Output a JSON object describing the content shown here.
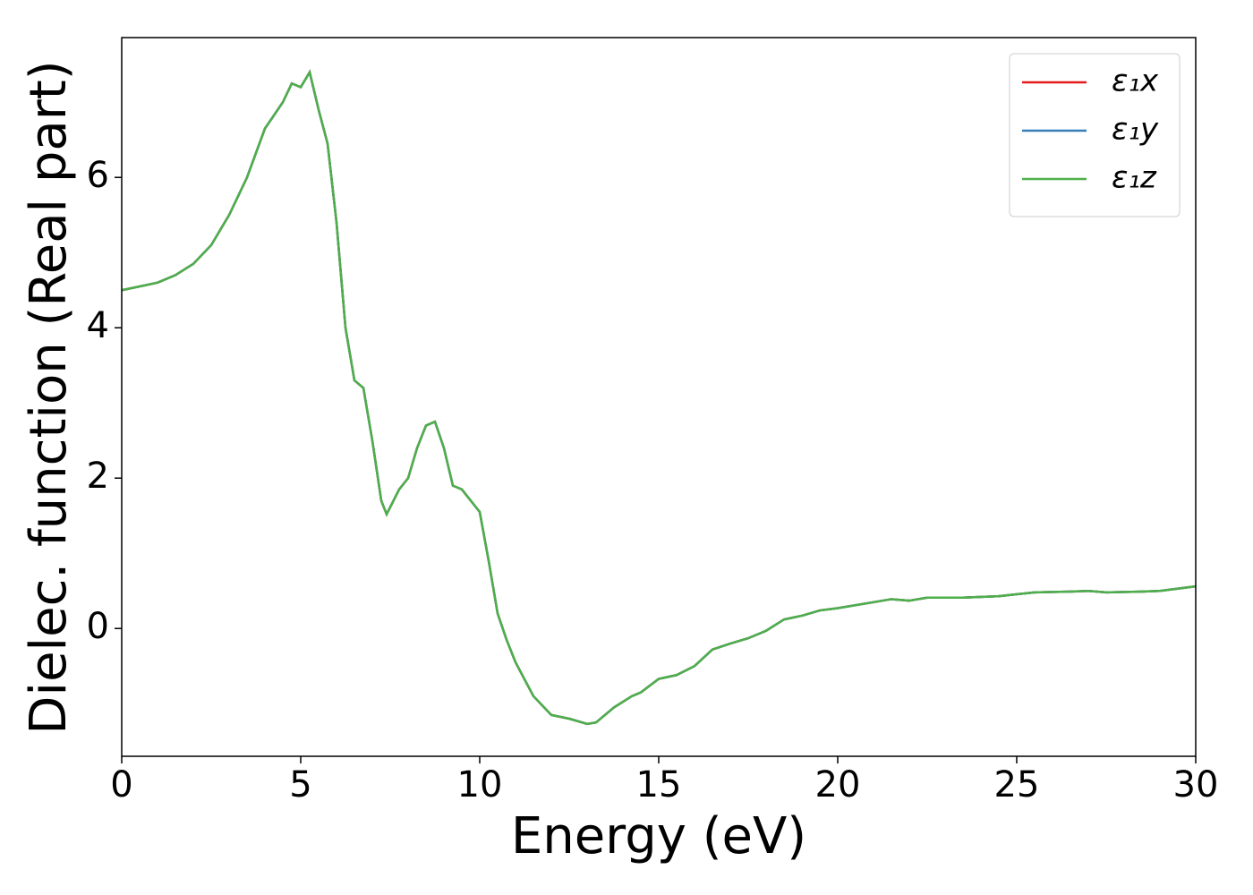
{
  "chart_data": {
    "type": "line",
    "xlabel": "Energy (eV)",
    "ylabel": "Dielec. function (Real part)",
    "x": [
      0,
      1,
      1.5,
      2,
      2.5,
      3,
      3.5,
      4,
      4.5,
      4.75,
      5,
      5.25,
      5.5,
      5.75,
      6,
      6.25,
      6.5,
      6.75,
      7,
      7.25,
      7.4,
      7.75,
      8,
      8.25,
      8.5,
      8.75,
      9,
      9.25,
      9.5,
      10,
      10.25,
      10.5,
      10.75,
      11,
      11.5,
      12,
      12.5,
      13,
      13.25,
      13.75,
      14.25,
      14.5,
      15,
      15.5,
      16,
      16.5,
      17,
      17.5,
      18,
      18.5,
      19,
      19.5,
      20,
      21,
      21.5,
      22,
      22.5,
      23.5,
      24.5,
      25.5,
      26.5,
      27,
      27.5,
      28.5,
      29,
      30
    ],
    "series": [
      {
        "name": "ε₁x",
        "color": "#e41a1c",
        "values": [
          4.5,
          4.6,
          4.7,
          4.85,
          5.1,
          5.5,
          6.0,
          6.65,
          7.0,
          7.25,
          7.2,
          7.4,
          6.9,
          6.45,
          5.4,
          4.0,
          3.3,
          3.2,
          2.5,
          1.7,
          1.52,
          1.85,
          2.0,
          2.4,
          2.7,
          2.75,
          2.4,
          1.9,
          1.85,
          1.55,
          0.9,
          0.2,
          -0.15,
          -0.45,
          -0.9,
          -1.15,
          -1.2,
          -1.27,
          -1.25,
          -1.05,
          -0.9,
          -0.85,
          -0.67,
          -0.62,
          -0.5,
          -0.28,
          -0.2,
          -0.13,
          -0.03,
          0.12,
          0.17,
          0.24,
          0.27,
          0.35,
          0.39,
          0.37,
          0.41,
          0.41,
          0.43,
          0.48,
          0.49,
          0.5,
          0.48,
          0.49,
          0.5,
          0.56
        ]
      },
      {
        "name": "ε₁y",
        "color": "#377eb8",
        "values": [
          4.5,
          4.6,
          4.7,
          4.85,
          5.1,
          5.5,
          6.0,
          6.65,
          7.0,
          7.25,
          7.2,
          7.4,
          6.9,
          6.45,
          5.4,
          4.0,
          3.3,
          3.2,
          2.5,
          1.7,
          1.52,
          1.85,
          2.0,
          2.4,
          2.7,
          2.75,
          2.4,
          1.9,
          1.85,
          1.55,
          0.9,
          0.2,
          -0.15,
          -0.45,
          -0.9,
          -1.15,
          -1.2,
          -1.27,
          -1.25,
          -1.05,
          -0.9,
          -0.85,
          -0.67,
          -0.62,
          -0.5,
          -0.28,
          -0.2,
          -0.13,
          -0.03,
          0.12,
          0.17,
          0.24,
          0.27,
          0.35,
          0.39,
          0.37,
          0.41,
          0.41,
          0.43,
          0.48,
          0.49,
          0.5,
          0.48,
          0.49,
          0.5,
          0.56
        ]
      },
      {
        "name": "ε₁z",
        "color": "#4daf4a",
        "values": [
          4.5,
          4.6,
          4.7,
          4.85,
          5.1,
          5.5,
          6.0,
          6.65,
          7.0,
          7.25,
          7.2,
          7.4,
          6.9,
          6.45,
          5.4,
          4.0,
          3.3,
          3.2,
          2.5,
          1.7,
          1.52,
          1.85,
          2.0,
          2.4,
          2.7,
          2.75,
          2.4,
          1.9,
          1.85,
          1.55,
          0.9,
          0.2,
          -0.15,
          -0.45,
          -0.9,
          -1.15,
          -1.2,
          -1.27,
          -1.25,
          -1.05,
          -0.9,
          -0.85,
          -0.67,
          -0.62,
          -0.5,
          -0.28,
          -0.2,
          -0.13,
          -0.03,
          0.12,
          0.17,
          0.24,
          0.27,
          0.35,
          0.39,
          0.37,
          0.41,
          0.41,
          0.43,
          0.48,
          0.49,
          0.5,
          0.48,
          0.49,
          0.5,
          0.56
        ]
      }
    ],
    "xlim": [
      0,
      30
    ],
    "xticks": [
      0,
      5,
      10,
      15,
      20,
      25,
      30
    ],
    "ylim": [
      -1.7,
      7.86
    ],
    "yticks": [
      0,
      2,
      4,
      6
    ],
    "grid": false,
    "legend": "upper right"
  }
}
